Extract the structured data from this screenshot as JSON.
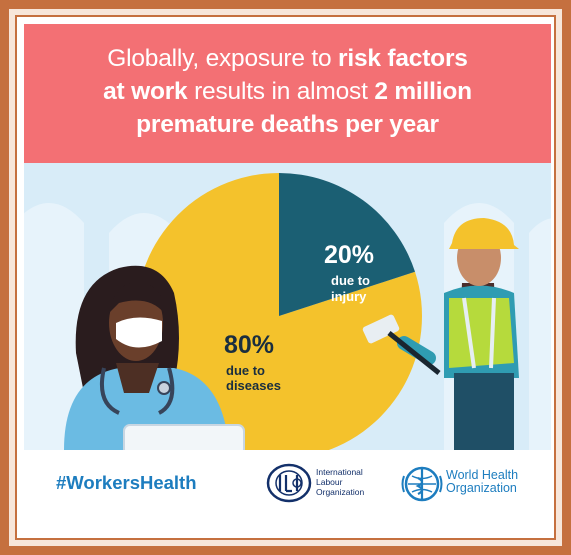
{
  "headline": {
    "line1_pre": "Globally, exposure to ",
    "line1_bold": "risk factors",
    "line2_bold": "at work",
    "line2_mid": " results in almost ",
    "line2_bold2": "2 million",
    "line3_bold": "premature deaths per year"
  },
  "chart_data": {
    "type": "pie",
    "series": [
      {
        "name": "due to injury",
        "values": [
          20
        ]
      },
      {
        "name": "due to diseases",
        "values": [
          80
        ]
      }
    ],
    "slices": [
      {
        "pct_label": "20%",
        "line1": "due to",
        "line2": "injury",
        "value": 20,
        "color": "#1b5f73"
      },
      {
        "pct_label": "80%",
        "line1": "due to",
        "line2": "diseases",
        "value": 80,
        "color": "#f4c22c"
      }
    ]
  },
  "footer": {
    "hashtag": "#WorkersHealth",
    "ilo": {
      "line1": "International",
      "line2": "Labour",
      "line3": "Organization",
      "logo_icon": "ilo-emblem-icon"
    },
    "who": {
      "line1": "World Health",
      "line2": "Organization",
      "logo_icon": "who-emblem-icon"
    }
  },
  "colors": {
    "frame": "#c5703f",
    "banner": "#f37074",
    "scene_bg": "#d8ecf8",
    "injury": "#1b5f73",
    "diseases": "#f4c22c",
    "hashtag": "#1d7dbf"
  }
}
